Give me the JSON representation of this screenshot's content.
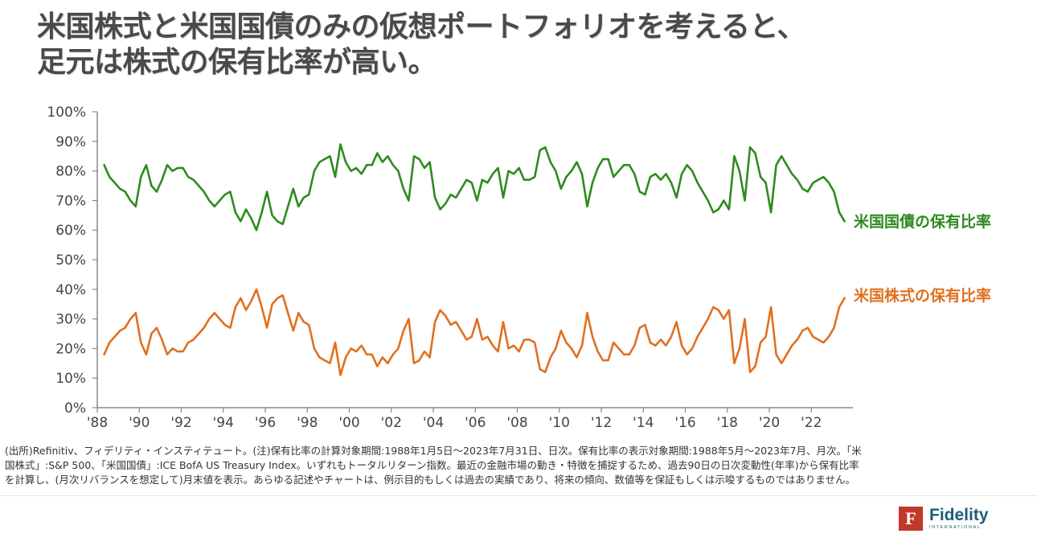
{
  "title": {
    "line1": "米国株式と米国国債のみの仮想ポートフォリオを考えると、",
    "line2": "足元は株式の保有比率が高い。"
  },
  "chart_data": {
    "type": "line",
    "title": "米国株式と米国国債のみの仮想ポートフォリオを考えると、足元は株式の保有比率が高い。",
    "xlabel": "",
    "ylabel": "",
    "ylim": [
      0,
      100
    ],
    "xlim": [
      1988,
      2023.75
    ],
    "y_ticks": [
      "0%",
      "10%",
      "20%",
      "30%",
      "40%",
      "50%",
      "60%",
      "70%",
      "80%",
      "90%",
      "100%"
    ],
    "y_tick_values": [
      0,
      10,
      20,
      30,
      40,
      50,
      60,
      70,
      80,
      90,
      100
    ],
    "x_ticks": [
      "'88",
      "'90",
      "'92",
      "'94",
      "'96",
      "'98",
      "'00",
      "'02",
      "'04",
      "'06",
      "'08",
      "'10",
      "'12",
      "'14",
      "'16",
      "'18",
      "'20",
      "'22"
    ],
    "x_tick_values": [
      1988,
      1990,
      1992,
      1994,
      1996,
      1998,
      2000,
      2002,
      2004,
      2006,
      2008,
      2010,
      2012,
      2014,
      2016,
      2018,
      2020,
      2022
    ],
    "grid": false,
    "x_start": 1988.33,
    "x_step": 0.25,
    "series": [
      {
        "name": "米国国債の保有比率",
        "color": "#2e8b1e",
        "values": [
          82,
          78,
          76,
          74,
          73,
          70,
          68,
          78,
          82,
          75,
          73,
          77,
          82,
          80,
          81,
          81,
          78,
          77,
          75,
          73,
          70,
          68,
          70,
          72,
          73,
          66,
          63,
          67,
          64,
          60,
          66,
          73,
          65,
          63,
          62,
          68,
          74,
          68,
          71,
          72,
          80,
          83,
          84,
          85,
          78,
          89,
          83,
          80,
          81,
          79,
          82,
          82,
          86,
          83,
          85,
          82,
          80,
          74,
          70,
          85,
          84,
          81,
          83,
          71,
          67,
          69,
          72,
          71,
          74,
          77,
          76,
          70,
          77,
          76,
          79,
          81,
          71,
          80,
          79,
          81,
          77,
          77,
          78,
          87,
          88,
          83,
          80,
          74,
          78,
          80,
          83,
          79,
          68,
          76,
          81,
          84,
          84,
          78,
          80,
          82,
          82,
          79,
          73,
          72,
          78,
          79,
          77,
          79,
          76,
          71,
          79,
          82,
          80,
          76,
          73,
          70,
          66,
          67,
          70,
          67,
          85,
          80,
          70,
          88,
          86,
          78,
          76,
          66,
          82,
          85,
          82,
          79,
          77,
          74,
          73,
          76,
          77,
          78,
          76,
          73,
          66,
          63
        ]
      },
      {
        "name": "米国株式の保有比率",
        "color": "#e07020",
        "values": [
          18,
          22,
          24,
          26,
          27,
          30,
          32,
          22,
          18,
          25,
          27,
          23,
          18,
          20,
          19,
          19,
          22,
          23,
          25,
          27,
          30,
          32,
          30,
          28,
          27,
          34,
          37,
          33,
          36,
          40,
          34,
          27,
          35,
          37,
          38,
          32,
          26,
          32,
          29,
          28,
          20,
          17,
          16,
          15,
          22,
          11,
          17,
          20,
          19,
          21,
          18,
          18,
          14,
          17,
          15,
          18,
          20,
          26,
          30,
          15,
          16,
          19,
          17,
          29,
          33,
          31,
          28,
          29,
          26,
          23,
          24,
          30,
          23,
          24,
          21,
          19,
          29,
          20,
          21,
          19,
          23,
          23,
          22,
          13,
          12,
          17,
          20,
          26,
          22,
          20,
          17,
          21,
          32,
          24,
          19,
          16,
          16,
          22,
          20,
          18,
          18,
          21,
          27,
          28,
          22,
          21,
          23,
          21,
          24,
          29,
          21,
          18,
          20,
          24,
          27,
          30,
          34,
          33,
          30,
          33,
          15,
          20,
          30,
          12,
          14,
          22,
          24,
          34,
          18,
          15,
          18,
          21,
          23,
          26,
          27,
          24,
          23,
          22,
          24,
          27,
          34,
          37
        ]
      }
    ]
  },
  "legend": {
    "bond_label": "米国国債の保有比率",
    "equity_label": "米国株式の保有比率"
  },
  "notes": {
    "line1": "(出所)Refinitiv、フィデリティ・インスティテュート。(注)保有比率の計算対象期間:1988年1月5日～2023年7月31日、日次。保有比率の表示対象期間:1988年5月～2023年7月、月次。「米",
    "line2": "国株式」:S&P 500、「米国国債」:ICE BofA US Treasury Index。いずれもトータルリターン指数。最近の金融市場の動き・特徴を捕捉するため、過去90日の日次変動性(年率)から保有比率",
    "line3": "を計算し、(月次リバランスを想定して)月末値を表示。あらゆる記述やチャートは、例示目的もしくは過去の実績であり、将来の傾向、数値等を保証もしくは示唆するものではありません。"
  },
  "logo": {
    "mark": "F",
    "name": "Fidelity",
    "sub": "INTERNATIONAL",
    "color": "#c0392b"
  },
  "colors": {
    "bond": "#2e8b1e",
    "equity": "#e07020",
    "axis": "#888888",
    "tick_text": "#444444"
  }
}
